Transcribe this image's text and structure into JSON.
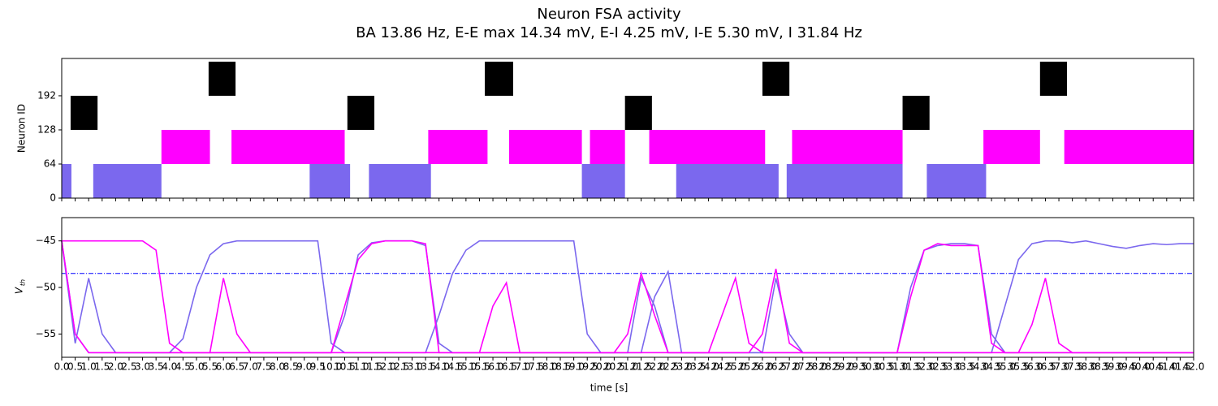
{
  "chart_data": [
    {
      "type": "raster",
      "title": "Neuron FSA activity",
      "subtitle": "BA 13.86 Hz, E-E max 14.34 mV, E-I 4.25 mV, I-E 5.30 mV, I 31.84 Hz",
      "ylabel": "Neuron ID",
      "xlim": [
        0,
        42
      ],
      "ylim": [
        0,
        262
      ],
      "yticks": [
        0,
        64,
        128,
        192
      ],
      "populations": [
        {
          "color": "#7b68ee",
          "neuron_range": [
            0,
            64
          ],
          "bursts": [
            [
              0,
              0.36
            ],
            [
              1.17,
              3.7
            ],
            [
              9.2,
              10.7
            ],
            [
              11.4,
              13.7
            ],
            [
              19.3,
              20.9
            ],
            [
              22.8,
              26.6
            ],
            [
              26.9,
              31.2
            ],
            [
              32.1,
              34.3
            ]
          ]
        },
        {
          "color": "#ff00ff",
          "neuron_range": [
            64,
            128
          ],
          "bursts": [
            [
              3.7,
              5.5
            ],
            [
              6.3,
              10.5
            ],
            [
              13.6,
              15.8
            ],
            [
              16.6,
              19.3
            ],
            [
              19.6,
              20.9
            ],
            [
              21.8,
              26.1
            ],
            [
              27.1,
              31.2
            ],
            [
              34.2,
              36.3
            ],
            [
              37.2,
              42
            ]
          ]
        },
        {
          "color": "#000000",
          "neuron_range": [
            128,
            192
          ],
          "bursts": [
            [
              0.33,
              1.33
            ],
            [
              10.6,
              11.6
            ],
            [
              20.9,
              21.9
            ],
            [
              31.2,
              32.2
            ]
          ]
        },
        {
          "color": "#000000",
          "neuron_range": [
            192,
            256
          ],
          "bursts": [
            [
              5.45,
              6.45
            ],
            [
              15.7,
              16.75
            ],
            [
              26.0,
              27.0
            ],
            [
              36.3,
              37.3
            ]
          ]
        }
      ]
    },
    {
      "type": "line",
      "xlabel": "time [s]",
      "ylabel": "V",
      "ylabel_sub": "th",
      "xlim": [
        0,
        42
      ],
      "ylim": [
        -57.5,
        -42.5
      ],
      "yticks": [
        {
          "value": -45,
          "label": "−45"
        },
        {
          "value": -50,
          "label": "−50"
        },
        {
          "value": -55,
          "label": "−55"
        }
      ],
      "xticks": [
        {
          "value": 0,
          "label": "0.0"
        },
        0.5,
        {
          "value": 1,
          "label": "1.0"
        },
        1.5,
        {
          "value": 2,
          "label": "2.0"
        },
        2.5,
        {
          "value": 3,
          "label": "3.0"
        },
        3.5,
        {
          "value": 4,
          "label": "4.0"
        },
        4.5,
        {
          "value": 5,
          "label": "5.0"
        },
        5.5,
        {
          "value": 6,
          "label": "6.0"
        },
        6.5,
        {
          "value": 7,
          "label": "7.0"
        },
        7.5,
        {
          "value": 8,
          "label": "8.0"
        },
        8.5,
        {
          "value": 9,
          "label": "9.0"
        },
        9.5,
        {
          "value": 10,
          "label": "10.0"
        },
        10.5,
        {
          "value": 11,
          "label": "11.0"
        },
        11.5,
        {
          "value": 12,
          "label": "12.0"
        },
        12.5,
        {
          "value": 13,
          "label": "13.0"
        },
        13.5,
        {
          "value": 14,
          "label": "14.0"
        },
        14.5,
        {
          "value": 15,
          "label": "15.0"
        },
        15.5,
        {
          "value": 16,
          "label": "16.0"
        },
        16.5,
        {
          "value": 17,
          "label": "17.0"
        },
        17.5,
        {
          "value": 18,
          "label": "18.0"
        },
        18.5,
        {
          "value": 19,
          "label": "19.0"
        },
        19.5,
        {
          "value": 20,
          "label": "20.0"
        },
        20.5,
        {
          "value": 21,
          "label": "21.0"
        },
        21.5,
        {
          "value": 22,
          "label": "22.0"
        },
        22.5,
        {
          "value": 23,
          "label": "23.0"
        },
        23.5,
        {
          "value": 24,
          "label": "24.0"
        },
        24.5,
        {
          "value": 25,
          "label": "25.0"
        },
        25.5,
        {
          "value": 26,
          "label": "26.0"
        },
        26.5,
        {
          "value": 27,
          "label": "27.0"
        },
        27.5,
        {
          "value": 28,
          "label": "28.0"
        },
        28.5,
        {
          "value": 29,
          "label": "29.0"
        },
        29.5,
        {
          "value": 30,
          "label": "30.0"
        },
        30.5,
        {
          "value": 31,
          "label": "31.0"
        },
        31.5,
        {
          "value": 32,
          "label": "32.0"
        },
        32.5,
        {
          "value": 33,
          "label": "33.0"
        },
        33.5,
        {
          "value": 34,
          "label": "34.0"
        },
        34.5,
        {
          "value": 35,
          "label": "35.0"
        },
        35.5,
        {
          "value": 36,
          "label": "36.0"
        },
        36.5,
        {
          "value": 37,
          "label": "37.0"
        },
        37.5,
        {
          "value": 38,
          "label": "38.0"
        },
        38.5,
        {
          "value": 39,
          "label": "39.0"
        },
        39.5,
        {
          "value": 40,
          "label": "40.0"
        },
        40.5,
        {
          "value": 41,
          "label": "41.0"
        },
        41.5,
        {
          "value": 42,
          "label": "42.0"
        }
      ],
      "x": [
        0,
        0.5,
        1,
        1.5,
        2,
        2.5,
        3,
        3.5,
        4,
        4.5,
        5,
        5.5,
        6,
        6.5,
        7,
        7.5,
        8,
        8.5,
        9,
        9.5,
        10,
        10.5,
        11,
        11.5,
        12,
        12.5,
        13,
        13.5,
        14,
        14.5,
        15,
        15.5,
        16,
        16.5,
        17,
        17.5,
        18,
        18.5,
        19,
        19.5,
        20,
        20.5,
        21,
        21.5,
        22,
        22.5,
        23,
        23.5,
        24,
        24.5,
        25,
        25.5,
        26,
        26.5,
        27,
        27.5,
        28,
        28.5,
        29,
        29.5,
        30,
        30.5,
        31,
        31.5,
        32,
        32.5,
        33,
        33.5,
        34,
        34.5,
        35,
        35.5,
        36,
        36.5,
        37,
        37.5,
        38,
        38.5,
        39,
        39.5,
        40,
        40.5,
        41,
        41.5,
        42
      ],
      "series": [
        {
          "color": "#7b68ee",
          "values": [
            -45,
            -55,
            -57,
            -57,
            -57,
            -57,
            -57,
            -57,
            -57,
            -55.5,
            -50,
            -46.5,
            -45.3,
            -45,
            -45,
            -45,
            -45,
            -45,
            -45,
            -45,
            -56,
            -57,
            -57,
            -57,
            -57,
            -57,
            -57,
            -57,
            -53,
            -48.5,
            -46,
            -45,
            -45,
            -45,
            -45,
            -45,
            -45,
            -45,
            -45,
            -55,
            -57,
            -57,
            -57,
            -57,
            -51,
            -48.3,
            -57,
            -57,
            -57,
            -57,
            -57,
            -57,
            -57,
            -57,
            -57,
            -57,
            -57,
            -57,
            -57,
            -57,
            -57,
            -57,
            -57,
            -57,
            -57,
            -57,
            -57,
            -57,
            -57,
            -57,
            -52,
            -47,
            -45.3,
            -45,
            -45,
            -45.2,
            -45,
            -45.3,
            -45.6,
            -45.8,
            -45.5,
            -45.3,
            -45.4,
            -45.3,
            -45.3
          ]
        },
        {
          "color": "#7b68ee",
          "values": [
            -45,
            -56,
            -49,
            -55,
            -57,
            -57,
            -57,
            -57,
            -57,
            -57,
            -57,
            -57,
            -57,
            -57,
            -57,
            -57,
            -57,
            -57,
            -57,
            -57,
            -57,
            -53,
            -46.5,
            -45.2,
            -45,
            -45,
            -45,
            -45.5,
            -56,
            -57,
            -57,
            -57,
            -57,
            -57,
            -57,
            -57,
            -57,
            -57,
            -57,
            -57,
            -57,
            -57,
            -57,
            -49,
            -52,
            -57,
            -57,
            -57,
            -57,
            -57,
            -57,
            -57,
            -57,
            -49,
            -55,
            -57,
            -57,
            -57,
            -57,
            -57,
            -57,
            -57,
            -57,
            -50,
            -46,
            -45.5,
            -45.3,
            -45.3,
            -45.5,
            -55,
            -57,
            -57,
            -57,
            -57,
            -57,
            -57,
            -57,
            -57,
            -57,
            -57,
            -57,
            -57,
            -57,
            -57,
            -57
          ]
        },
        {
          "color": "#ff00ff",
          "values": [
            -45,
            -45,
            -45,
            -45,
            -45,
            -45,
            -45,
            -46,
            -56,
            -57,
            -57,
            -57,
            -57,
            -57,
            -57,
            -57,
            -57,
            -57,
            -57,
            -57,
            -57,
            -52,
            -47,
            -45.3,
            -45,
            -45,
            -45,
            -45.3,
            -57,
            -57,
            -57,
            -57,
            -57,
            -57,
            -57,
            -57,
            -57,
            -57,
            -57,
            -57,
            -57,
            -57,
            -57,
            -57,
            -57,
            -57,
            -57,
            -57,
            -57,
            -53,
            -49,
            -56,
            -57,
            -57,
            -57,
            -57,
            -57,
            -57,
            -57,
            -57,
            -57,
            -57,
            -57,
            -51,
            -46,
            -45.3,
            -45.5,
            -45.5,
            -45.5,
            -56,
            -57,
            -57,
            -57,
            -57,
            -57,
            -57,
            -57,
            -57,
            -57,
            -57,
            -57,
            -57,
            -57,
            -57,
            -57
          ]
        },
        {
          "color": "#ff00ff",
          "values": [
            -45,
            -55,
            -57,
            -57,
            -57,
            -57,
            -57,
            -57,
            -57,
            -57,
            -57,
            -57,
            -49,
            -55,
            -57,
            -57,
            -57,
            -57,
            -57,
            -57,
            -57,
            -57,
            -57,
            -57,
            -57,
            -57,
            -57,
            -57,
            -57,
            -57,
            -57,
            -57,
            -52,
            -49.5,
            -57,
            -57,
            -57,
            -57,
            -57,
            -57,
            -57,
            -57,
            -55,
            -48.5,
            -53,
            -57,
            -57,
            -57,
            -57,
            -57,
            -57,
            -57,
            -55,
            -48,
            -56,
            -57,
            -57,
            -57,
            -57,
            -57,
            -57,
            -57,
            -57,
            -57,
            -57,
            -57,
            -57,
            -57,
            -57,
            -57,
            -57,
            -57,
            -54,
            -49,
            -56,
            -57,
            -57,
            -57,
            -57,
            -57,
            -57,
            -57,
            -57,
            -57,
            -57
          ]
        }
      ],
      "hlines": [
        {
          "value": -48.5,
          "color": "#0000ff"
        }
      ]
    }
  ]
}
